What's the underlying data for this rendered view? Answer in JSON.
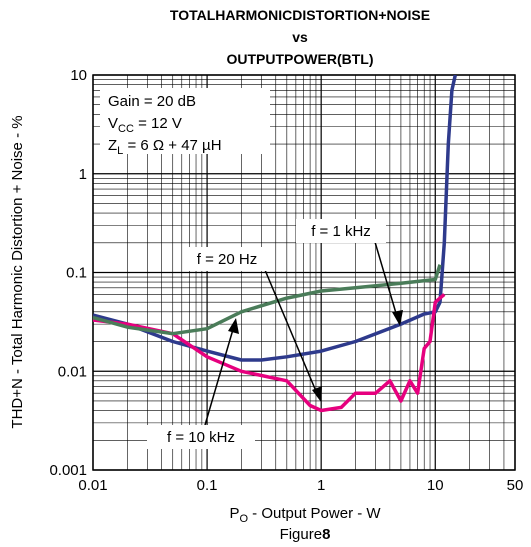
{
  "chart_data": {
    "type": "line",
    "title": [
      "TOTALHARMONICDISTORTION+NOISE",
      "vs",
      "OUTPUTPOWER(BTL)"
    ],
    "x_label": {
      "main": "P",
      "sub": "O",
      "tail": " - Output Power - W"
    },
    "y_label": "THD+N - Total Harmonic Distortion + Noise - %",
    "caption": {
      "main": "Figure",
      "bold": "8"
    },
    "conditions": [
      {
        "main": "Gain = 20 dB"
      },
      {
        "main": "V",
        "sub": "CC",
        "tail": " = 12 V"
      },
      {
        "main": "Z",
        "sub": "L",
        "tail": " = 6 Ω + 47 µH"
      }
    ],
    "xlog": true,
    "ylog": true,
    "grid": true,
    "xlim": [
      0.01,
      50
    ],
    "ylim": [
      0.001,
      10
    ],
    "xticks": [
      0.01,
      0.1,
      1,
      10,
      50
    ],
    "yticks": [
      0.001,
      0.01,
      0.1,
      1,
      10
    ],
    "series": [
      {
        "name": "f = 1 kHz",
        "color": "#2e3a8c",
        "x": [
          0.01,
          0.02,
          0.05,
          0.1,
          0.2,
          0.3,
          0.5,
          1,
          2,
          5,
          8,
          10,
          11,
          12,
          13,
          14,
          15
        ],
        "values": [
          0.037,
          0.03,
          0.02,
          0.016,
          0.013,
          0.013,
          0.014,
          0.016,
          0.02,
          0.03,
          0.038,
          0.04,
          0.05,
          0.2,
          2,
          7,
          10
        ]
      },
      {
        "name": "f = 20 Hz",
        "color": "#e6007e",
        "x": [
          0.01,
          0.02,
          0.05,
          0.1,
          0.2,
          0.5,
          0.8,
          1,
          1.5,
          2,
          3,
          4,
          5,
          6,
          7,
          8,
          9,
          10,
          11,
          12
        ],
        "values": [
          0.033,
          0.03,
          0.024,
          0.014,
          0.01,
          0.008,
          0.0045,
          0.004,
          0.0043,
          0.006,
          0.006,
          0.008,
          0.005,
          0.008,
          0.006,
          0.017,
          0.02,
          0.05,
          0.055,
          0.06
        ]
      },
      {
        "name": "f = 10 kHz",
        "color": "#4a7c59",
        "x": [
          0.01,
          0.02,
          0.05,
          0.1,
          0.2,
          0.5,
          1,
          2,
          5,
          10,
          11
        ],
        "values": [
          0.035,
          0.028,
          0.024,
          0.027,
          0.04,
          0.055,
          0.065,
          0.07,
          0.078,
          0.085,
          0.12
        ]
      }
    ]
  }
}
